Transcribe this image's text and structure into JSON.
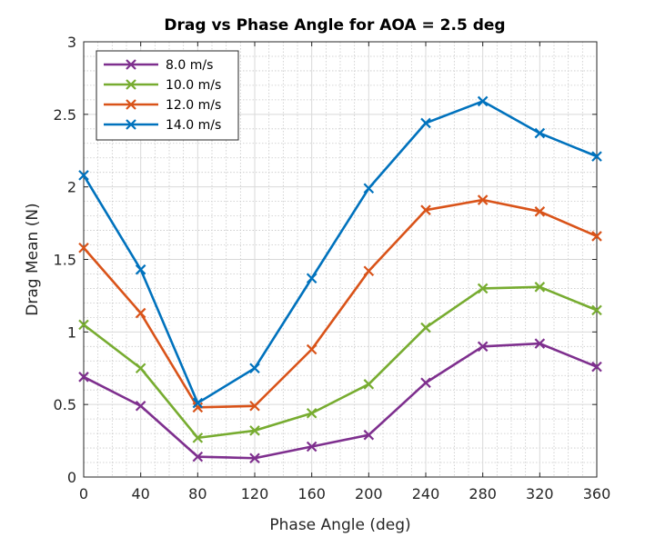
{
  "chart_data": {
    "type": "line",
    "title": "Drag vs Phase Angle for AOA = 2.5 deg",
    "xlabel": "Phase Angle (deg)",
    "ylabel": "Drag Mean (N)",
    "xlim": [
      0,
      360
    ],
    "ylim": [
      0,
      3
    ],
    "xticks": [
      0,
      40,
      80,
      120,
      160,
      200,
      240,
      280,
      320,
      360
    ],
    "yticks": [
      0,
      0.5,
      1,
      1.5,
      2,
      2.5,
      3
    ],
    "ytick_labels": [
      "0",
      "0.5",
      "1",
      "1.5",
      "2",
      "2.5",
      "3"
    ],
    "grid": true,
    "minor_grid": true,
    "legend_position": "top-left",
    "x": [
      0,
      40,
      80,
      120,
      160,
      200,
      240,
      280,
      320,
      360
    ],
    "series": [
      {
        "name": "8.0 m/s",
        "color": "#7E2F8E",
        "marker": "x",
        "values": [
          0.69,
          0.49,
          0.14,
          0.13,
          0.21,
          0.29,
          0.65,
          0.9,
          0.92,
          0.76
        ]
      },
      {
        "name": "10.0 m/s",
        "color": "#77AC30",
        "marker": "x",
        "values": [
          1.05,
          0.75,
          0.27,
          0.32,
          0.44,
          0.64,
          1.03,
          1.3,
          1.31,
          1.15
        ]
      },
      {
        "name": "12.0 m/s",
        "color": "#D95319",
        "marker": "x",
        "values": [
          1.58,
          1.13,
          0.48,
          0.49,
          0.88,
          1.42,
          1.84,
          1.91,
          1.83,
          1.66
        ]
      },
      {
        "name": "14.0 m/s",
        "color": "#0072BD",
        "marker": "x",
        "values": [
          2.08,
          1.43,
          0.51,
          0.75,
          1.37,
          1.99,
          2.44,
          2.59,
          2.37,
          2.21
        ]
      }
    ]
  }
}
